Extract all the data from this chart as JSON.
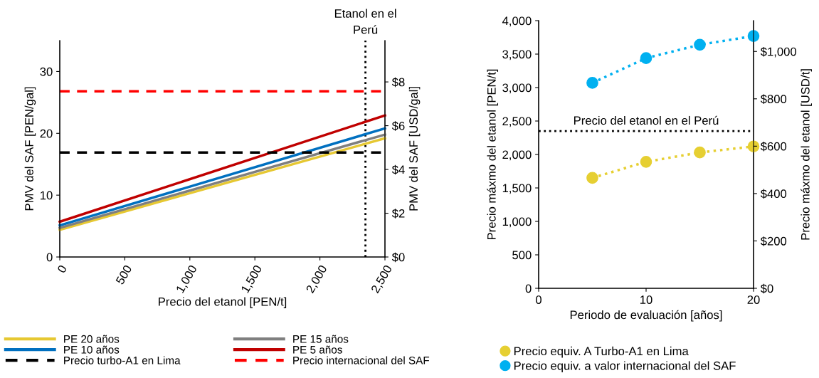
{
  "chart_data": [
    {
      "type": "line",
      "xlabel": "Precio del etanol [PEN/t]",
      "ylabel": "PMV del SAF [PEN/gal]",
      "y2label": "PMV del SAF [USD/gal]",
      "xlim": [
        0,
        2500
      ],
      "xticks": [
        0,
        {
          "value": 500,
          "label": "500"
        },
        {
          "value": 1000,
          "label": "1,000"
        },
        {
          "value": 1500,
          "label": "1,500"
        },
        {
          "value": 2000,
          "label": "2,000"
        },
        {
          "value": 2500,
          "label": "2,500"
        }
      ],
      "ylim": [
        0,
        35
      ],
      "yticks": [
        0,
        10,
        20,
        30
      ],
      "y2lim": [
        0,
        9.89
      ],
      "y2ticks": [
        {
          "value": 0,
          "label": "$0"
        },
        {
          "value": 2,
          "label": "$2"
        },
        {
          "value": 4,
          "label": "$4"
        },
        {
          "value": 6,
          "label": "$6"
        },
        {
          "value": 8,
          "label": "$8"
        }
      ],
      "x": [
        0,
        2500
      ],
      "legend": "bottom",
      "grid": false,
      "line_style": "solid",
      "series": [
        {
          "name": "PE 20 años",
          "color": "#e6c832",
          "values": [
            4.4,
            19.2
          ]
        },
        {
          "name": "PE 15 años",
          "color": "#7f7f7f",
          "values": [
            4.7,
            19.8
          ]
        },
        {
          "name": "PE 10 años",
          "color": "#0070c0",
          "values": [
            5.1,
            20.8
          ]
        },
        {
          "name": "PE 5 años",
          "color": "#c00000",
          "values": [
            5.7,
            22.9
          ]
        },
        {
          "name": "Precio turbo-A1 en Lima",
          "color": "#000000",
          "line_style": "dashed",
          "values": [
            16.9,
            16.9
          ]
        },
        {
          "name": "Precio internacional del SAF",
          "color": "#ff0000",
          "line_style": "dashed",
          "values": [
            26.8,
            26.8
          ]
        }
      ],
      "ref_lines": [
        {
          "axis": "x",
          "value": 2350,
          "label": "Etanol en el\nPerú",
          "color": "#000000",
          "line_style": "dotted"
        }
      ]
    },
    {
      "type": "line",
      "xlabel": "Periodo de evaluación [años]",
      "ylabel": "Precio máxmo del etanol [PEN/t]",
      "y2label": "Precio máxmo del etanol [USD/t]",
      "xlim": [
        0,
        20
      ],
      "xticks": [
        0,
        10,
        20
      ],
      "ylim": [
        0,
        4000
      ],
      "yticks": [
        0,
        500,
        {
          "value": 1000,
          "label": "1,000"
        },
        {
          "value": 1500,
          "label": "1,500"
        },
        {
          "value": 2000,
          "label": "2,000"
        },
        {
          "value": 2500,
          "label": "2,500"
        },
        {
          "value": 3000,
          "label": "3,000"
        },
        {
          "value": 3500,
          "label": "3,500"
        },
        {
          "value": 4000,
          "label": "4,000"
        }
      ],
      "y2lim": [
        0,
        1130
      ],
      "y2ticks": [
        {
          "value": 0,
          "label": "$0"
        },
        {
          "value": 200,
          "label": "$200"
        },
        {
          "value": 400,
          "label": "$400"
        },
        {
          "value": 600,
          "label": "$600"
        },
        {
          "value": 800,
          "label": "$800"
        },
        {
          "value": 1000,
          "label": "$1,000"
        }
      ],
      "x": [
        5,
        10,
        15,
        20
      ],
      "legend": "bottom",
      "grid": false,
      "marker": "circle",
      "line_style": "dotted",
      "series": [
        {
          "name": "Precio equiv. A Turbo-A1 en Lima",
          "color": "#e6cf32",
          "values": [
            1650,
            1890,
            2030,
            2120
          ]
        },
        {
          "name": "Precio equiv. a valor internacional del SAF",
          "color": "#00b0f0",
          "values": [
            3070,
            3440,
            3640,
            3770
          ]
        }
      ],
      "ref_lines": [
        {
          "axis": "y",
          "value": 2350,
          "label": "Precio del etanol en el Perú",
          "color": "#000000",
          "line_style": "dotted"
        }
      ]
    }
  ]
}
